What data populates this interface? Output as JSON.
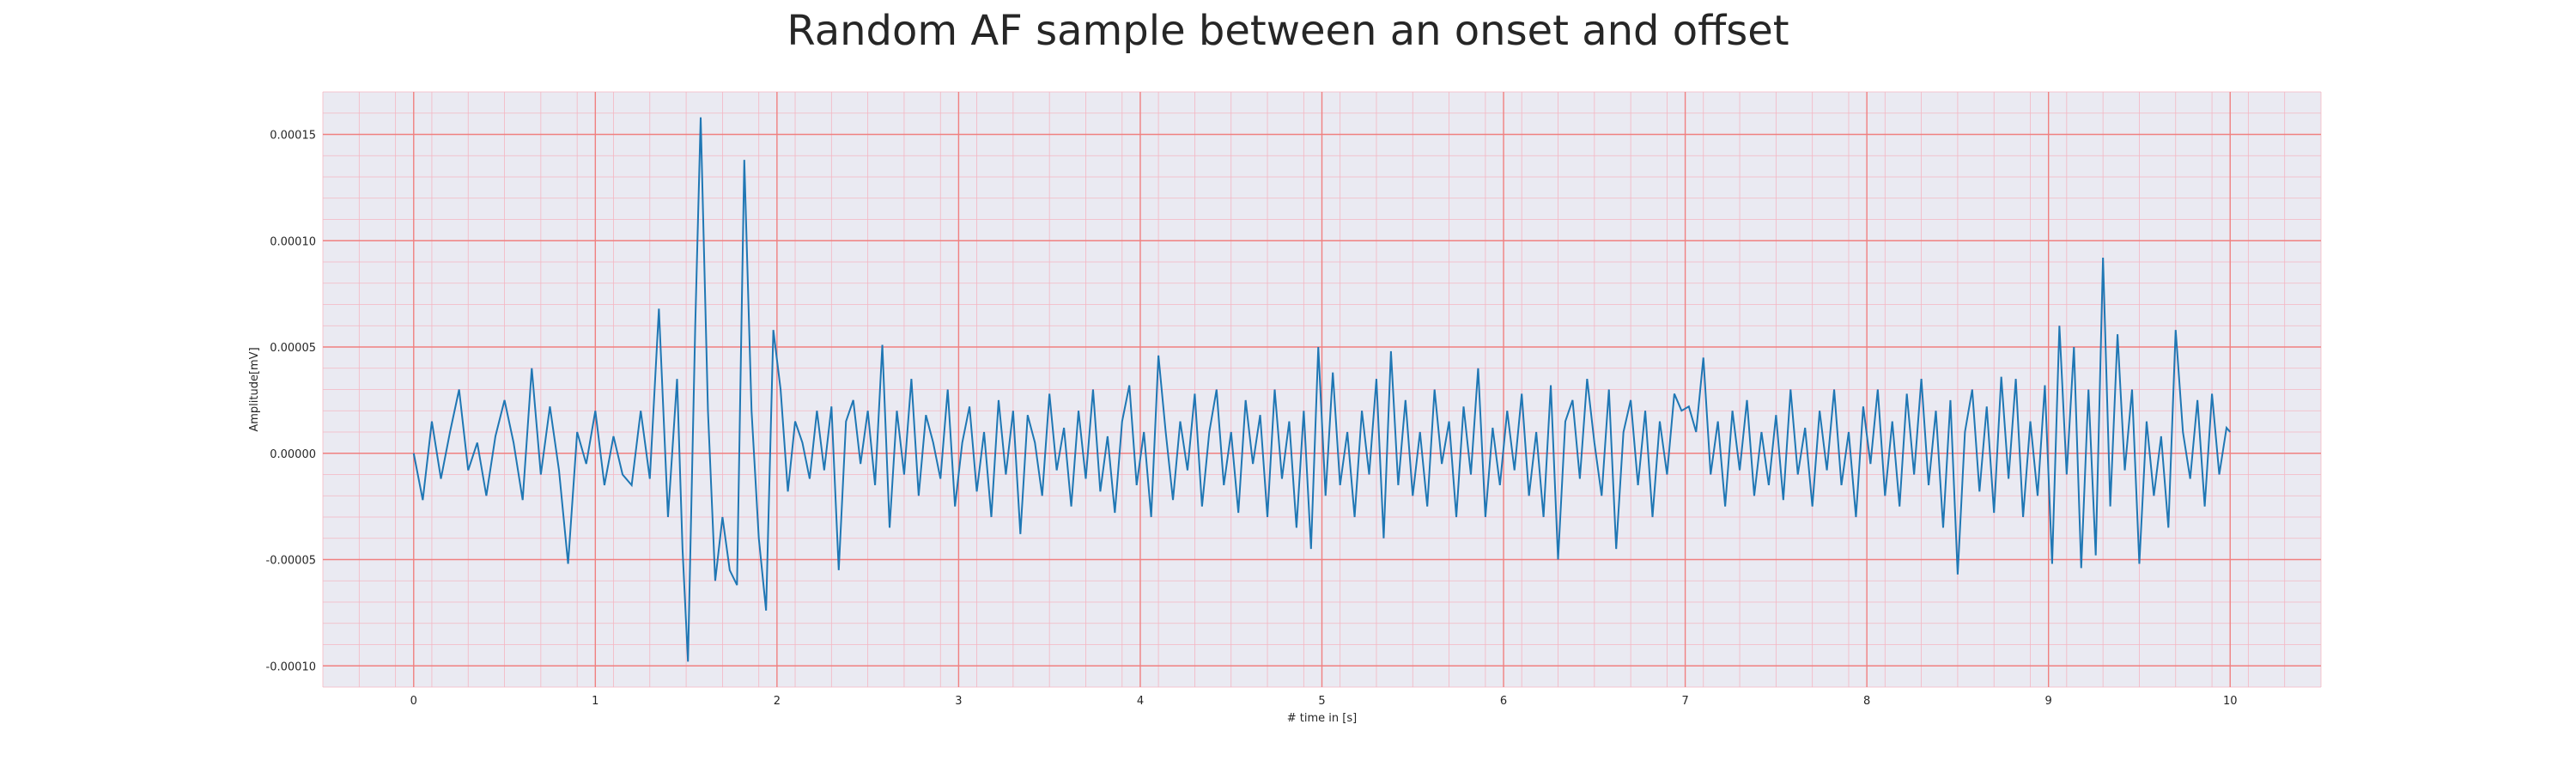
{
  "chart_data": {
    "type": "line",
    "title": "Random AF sample between an onset and offset",
    "xlabel": "# time in [s]",
    "ylabel": "Amplitude[mV]",
    "xlim": [
      -0.5,
      10.5
    ],
    "ylim": [
      -0.00011,
      0.00017
    ],
    "xticks": [
      0,
      1,
      2,
      3,
      4,
      5,
      6,
      7,
      8,
      9,
      10
    ],
    "xtick_labels": [
      "0",
      "1",
      "2",
      "3",
      "4",
      "5",
      "6",
      "7",
      "8",
      "9",
      "10"
    ],
    "yticks": [
      -0.0001,
      -5e-05,
      0,
      5e-05,
      0.0001,
      0.00015
    ],
    "ytick_labels": [
      "-0.00010",
      "-0.00005",
      "0.00000",
      "0.00005",
      "0.00010",
      "0.00015"
    ],
    "grid": "major and minor",
    "legend": "none",
    "colors": {
      "line": "#1f77b4",
      "plot_background": "#eaeaf2",
      "major_grid": "#f08080",
      "minor_grid": "#f4b6c2"
    },
    "series": [
      {
        "points": [
          [
            0.0,
            0.0
          ],
          [
            0.05,
            -2.2e-05
          ],
          [
            0.1,
            1.5e-05
          ],
          [
            0.15,
            -1.2e-05
          ],
          [
            0.2,
            1e-05
          ],
          [
            0.25,
            3e-05
          ],
          [
            0.3,
            -8e-06
          ],
          [
            0.35,
            5e-06
          ],
          [
            0.4,
            -2e-05
          ],
          [
            0.45,
            8e-06
          ],
          [
            0.5,
            2.5e-05
          ],
          [
            0.55,
            5e-06
          ],
          [
            0.6,
            -2.2e-05
          ],
          [
            0.65,
            4e-05
          ],
          [
            0.7,
            -1e-05
          ],
          [
            0.75,
            2.2e-05
          ],
          [
            0.8,
            -8e-06
          ],
          [
            0.85,
            -5.2e-05
          ],
          [
            0.9,
            1e-05
          ],
          [
            0.95,
            -5e-06
          ],
          [
            1.0,
            2e-05
          ],
          [
            1.05,
            -1.5e-05
          ],
          [
            1.1,
            8e-06
          ],
          [
            1.15,
            -1e-05
          ],
          [
            1.2,
            -1.5e-05
          ],
          [
            1.25,
            2e-05
          ],
          [
            1.3,
            -1.2e-05
          ],
          [
            1.35,
            6.8e-05
          ],
          [
            1.4,
            -3e-05
          ],
          [
            1.45,
            3.5e-05
          ],
          [
            1.48,
            -4.5e-05
          ],
          [
            1.51,
            -9.8e-05
          ],
          [
            1.55,
            6e-05
          ],
          [
            1.58,
            0.000158
          ],
          [
            1.62,
            2e-05
          ],
          [
            1.66,
            -6e-05
          ],
          [
            1.7,
            -3e-05
          ],
          [
            1.74,
            -5.5e-05
          ],
          [
            1.78,
            -6.2e-05
          ],
          [
            1.82,
            0.000138
          ],
          [
            1.86,
            2e-05
          ],
          [
            1.9,
            -4e-05
          ],
          [
            1.94,
            -7.4e-05
          ],
          [
            1.98,
            5.8e-05
          ],
          [
            2.02,
            3e-05
          ],
          [
            2.06,
            -1.8e-05
          ],
          [
            2.1,
            1.5e-05
          ],
          [
            2.14,
            5e-06
          ],
          [
            2.18,
            -1.2e-05
          ],
          [
            2.22,
            2e-05
          ],
          [
            2.26,
            -8e-06
          ],
          [
            2.3,
            2.2e-05
          ],
          [
            2.34,
            -5.5e-05
          ],
          [
            2.38,
            1.5e-05
          ],
          [
            2.42,
            2.5e-05
          ],
          [
            2.46,
            -5e-06
          ],
          [
            2.5,
            2e-05
          ],
          [
            2.54,
            -1.5e-05
          ],
          [
            2.58,
            5.1e-05
          ],
          [
            2.62,
            -3.5e-05
          ],
          [
            2.66,
            2e-05
          ],
          [
            2.7,
            -1e-05
          ],
          [
            2.74,
            3.5e-05
          ],
          [
            2.78,
            -2e-05
          ],
          [
            2.82,
            1.8e-05
          ],
          [
            2.86,
            5e-06
          ],
          [
            2.9,
            -1.2e-05
          ],
          [
            2.94,
            3e-05
          ],
          [
            2.98,
            -2.5e-05
          ],
          [
            3.02,
            5e-06
          ],
          [
            3.06,
            2.2e-05
          ],
          [
            3.1,
            -1.8e-05
          ],
          [
            3.14,
            1e-05
          ],
          [
            3.18,
            -3e-05
          ],
          [
            3.22,
            2.5e-05
          ],
          [
            3.26,
            -1e-05
          ],
          [
            3.3,
            2e-05
          ],
          [
            3.34,
            -3.8e-05
          ],
          [
            3.38,
            1.8e-05
          ],
          [
            3.42,
            5e-06
          ],
          [
            3.46,
            -2e-05
          ],
          [
            3.5,
            2.8e-05
          ],
          [
            3.54,
            -8e-06
          ],
          [
            3.58,
            1.2e-05
          ],
          [
            3.62,
            -2.5e-05
          ],
          [
            3.66,
            2e-05
          ],
          [
            3.7,
            -1.2e-05
          ],
          [
            3.74,
            3e-05
          ],
          [
            3.78,
            -1.8e-05
          ],
          [
            3.82,
            8e-06
          ],
          [
            3.86,
            -2.8e-05
          ],
          [
            3.9,
            1.5e-05
          ],
          [
            3.94,
            3.2e-05
          ],
          [
            3.98,
            -1.5e-05
          ],
          [
            4.02,
            1e-05
          ],
          [
            4.06,
            -3e-05
          ],
          [
            4.1,
            4.6e-05
          ],
          [
            4.14,
            1e-05
          ],
          [
            4.18,
            -2.2e-05
          ],
          [
            4.22,
            1.5e-05
          ],
          [
            4.26,
            -8e-06
          ],
          [
            4.3,
            2.8e-05
          ],
          [
            4.34,
            -2.5e-05
          ],
          [
            4.38,
            1e-05
          ],
          [
            4.42,
            3e-05
          ],
          [
            4.46,
            -1.5e-05
          ],
          [
            4.5,
            1e-05
          ],
          [
            4.54,
            -2.8e-05
          ],
          [
            4.58,
            2.5e-05
          ],
          [
            4.62,
            -5e-06
          ],
          [
            4.66,
            1.8e-05
          ],
          [
            4.7,
            -3e-05
          ],
          [
            4.74,
            3e-05
          ],
          [
            4.78,
            -1.2e-05
          ],
          [
            4.82,
            1.5e-05
          ],
          [
            4.86,
            -3.5e-05
          ],
          [
            4.9,
            2e-05
          ],
          [
            4.94,
            -4.5e-05
          ],
          [
            4.98,
            5e-05
          ],
          [
            5.02,
            -2e-05
          ],
          [
            5.06,
            3.8e-05
          ],
          [
            5.1,
            -1.5e-05
          ],
          [
            5.14,
            1e-05
          ],
          [
            5.18,
            -3e-05
          ],
          [
            5.22,
            2e-05
          ],
          [
            5.26,
            -1e-05
          ],
          [
            5.3,
            3.5e-05
          ],
          [
            5.34,
            -4e-05
          ],
          [
            5.38,
            4.8e-05
          ],
          [
            5.42,
            -1.5e-05
          ],
          [
            5.46,
            2.5e-05
          ],
          [
            5.5,
            -2e-05
          ],
          [
            5.54,
            1e-05
          ],
          [
            5.58,
            -2.5e-05
          ],
          [
            5.62,
            3e-05
          ],
          [
            5.66,
            -5e-06
          ],
          [
            5.7,
            1.5e-05
          ],
          [
            5.74,
            -3e-05
          ],
          [
            5.78,
            2.2e-05
          ],
          [
            5.82,
            -1e-05
          ],
          [
            5.86,
            4e-05
          ],
          [
            5.9,
            -3e-05
          ],
          [
            5.94,
            1.2e-05
          ],
          [
            5.98,
            -1.5e-05
          ],
          [
            6.02,
            2e-05
          ],
          [
            6.06,
            -8e-06
          ],
          [
            6.1,
            2.8e-05
          ],
          [
            6.14,
            -2e-05
          ],
          [
            6.18,
            1e-05
          ],
          [
            6.22,
            -3e-05
          ],
          [
            6.26,
            3.2e-05
          ],
          [
            6.3,
            -5e-05
          ],
          [
            6.34,
            1.5e-05
          ],
          [
            6.38,
            2.5e-05
          ],
          [
            6.42,
            -1.2e-05
          ],
          [
            6.46,
            3.5e-05
          ],
          [
            6.5,
            5e-06
          ],
          [
            6.54,
            -2e-05
          ],
          [
            6.58,
            3e-05
          ],
          [
            6.62,
            -4.5e-05
          ],
          [
            6.66,
            1e-05
          ],
          [
            6.7,
            2.5e-05
          ],
          [
            6.74,
            -1.5e-05
          ],
          [
            6.78,
            2e-05
          ],
          [
            6.82,
            -3e-05
          ],
          [
            6.86,
            1.5e-05
          ],
          [
            6.9,
            -1e-05
          ],
          [
            6.94,
            2.8e-05
          ],
          [
            6.98,
            2e-05
          ],
          [
            7.02,
            2.2e-05
          ],
          [
            7.06,
            1e-05
          ],
          [
            7.1,
            4.5e-05
          ],
          [
            7.14,
            -1e-05
          ],
          [
            7.18,
            1.5e-05
          ],
          [
            7.22,
            -2.5e-05
          ],
          [
            7.26,
            2e-05
          ],
          [
            7.3,
            -8e-06
          ],
          [
            7.34,
            2.5e-05
          ],
          [
            7.38,
            -2e-05
          ],
          [
            7.42,
            1e-05
          ],
          [
            7.46,
            -1.5e-05
          ],
          [
            7.5,
            1.8e-05
          ],
          [
            7.54,
            -2.2e-05
          ],
          [
            7.58,
            3e-05
          ],
          [
            7.62,
            -1e-05
          ],
          [
            7.66,
            1.2e-05
          ],
          [
            7.7,
            -2.5e-05
          ],
          [
            7.74,
            2e-05
          ],
          [
            7.78,
            -8e-06
          ],
          [
            7.82,
            3e-05
          ],
          [
            7.86,
            -1.5e-05
          ],
          [
            7.9,
            1e-05
          ],
          [
            7.94,
            -3e-05
          ],
          [
            7.98,
            2.2e-05
          ],
          [
            8.02,
            -5e-06
          ],
          [
            8.06,
            3e-05
          ],
          [
            8.1,
            -2e-05
          ],
          [
            8.14,
            1.5e-05
          ],
          [
            8.18,
            -2.5e-05
          ],
          [
            8.22,
            2.8e-05
          ],
          [
            8.26,
            -1e-05
          ],
          [
            8.3,
            3.5e-05
          ],
          [
            8.34,
            -1.5e-05
          ],
          [
            8.38,
            2e-05
          ],
          [
            8.42,
            -3.5e-05
          ],
          [
            8.46,
            2.5e-05
          ],
          [
            8.5,
            -5.7e-05
          ],
          [
            8.54,
            1e-05
          ],
          [
            8.58,
            3e-05
          ],
          [
            8.62,
            -1.8e-05
          ],
          [
            8.66,
            2.2e-05
          ],
          [
            8.7,
            -2.8e-05
          ],
          [
            8.74,
            3.6e-05
          ],
          [
            8.78,
            -1.2e-05
          ],
          [
            8.82,
            3.5e-05
          ],
          [
            8.86,
            -3e-05
          ],
          [
            8.9,
            1.5e-05
          ],
          [
            8.94,
            -2e-05
          ],
          [
            8.98,
            3.2e-05
          ],
          [
            9.02,
            -5.2e-05
          ],
          [
            9.06,
            6e-05
          ],
          [
            9.1,
            -1e-05
          ],
          [
            9.14,
            5e-05
          ],
          [
            9.18,
            -5.4e-05
          ],
          [
            9.22,
            3e-05
          ],
          [
            9.26,
            -4.8e-05
          ],
          [
            9.3,
            9.2e-05
          ],
          [
            9.34,
            -2.5e-05
          ],
          [
            9.38,
            5.6e-05
          ],
          [
            9.42,
            -8e-06
          ],
          [
            9.46,
            3e-05
          ],
          [
            9.5,
            -5.2e-05
          ],
          [
            9.54,
            1.5e-05
          ],
          [
            9.58,
            -2e-05
          ],
          [
            9.62,
            8e-06
          ],
          [
            9.66,
            -3.5e-05
          ],
          [
            9.7,
            5.8e-05
          ],
          [
            9.74,
            1e-05
          ],
          [
            9.78,
            -1.2e-05
          ],
          [
            9.82,
            2.5e-05
          ],
          [
            9.86,
            -2.5e-05
          ],
          [
            9.9,
            2.8e-05
          ],
          [
            9.94,
            -1e-05
          ],
          [
            9.98,
            1.2e-05
          ],
          [
            10.0,
            1e-05
          ]
        ]
      }
    ]
  }
}
